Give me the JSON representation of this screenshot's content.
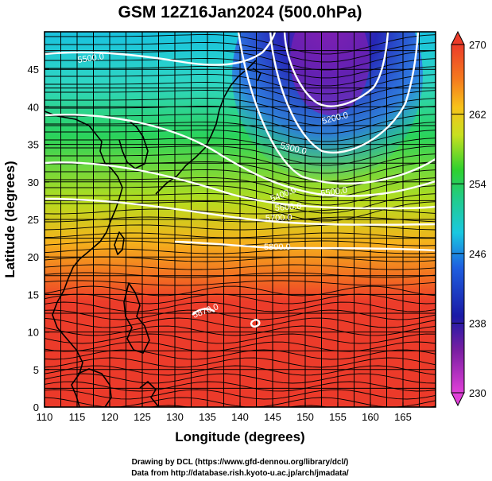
{
  "title": "GSM 12Z16Jan2024 (500.0hPa)",
  "x_axis": {
    "label": "Longitude (degrees)",
    "range": [
      110,
      170
    ],
    "ticks": [
      "110",
      "115",
      "120",
      "125",
      "130",
      "135",
      "140",
      "145",
      "150",
      "155",
      "160",
      "165"
    ]
  },
  "y_axis": {
    "label": "Latitude (degrees)",
    "range": [
      0,
      50
    ],
    "ticks": [
      "0",
      "5",
      "10",
      "15",
      "20",
      "25",
      "30",
      "35",
      "40",
      "45"
    ]
  },
  "colorbar": {
    "range": [
      230,
      270
    ],
    "ticks": [
      "230",
      "238",
      "246",
      "254",
      "262",
      "270"
    ],
    "colors": [
      "#e040d8",
      "#7b1fa2",
      "#1a1aa6",
      "#1e5fe0",
      "#19c8e0",
      "#22cc88",
      "#2fd12f",
      "#c8e020",
      "#f7c21a",
      "#f57a1e",
      "#ec3c2a"
    ]
  },
  "contours": {
    "color": "#ffffff",
    "labels": [
      "5500.0",
      "5200.0",
      "5300.0",
      "5400.0",
      "5500.0",
      "5600.0",
      "5700.0",
      "5800.0",
      "5870.0"
    ]
  },
  "map": {
    "grid": true,
    "coastline_color": "#000000",
    "streamline_color": "#000000"
  },
  "credits": {
    "line1": "Drawing by DCL (https://www.gfd-dennou.org/library/dcl/)",
    "line2": "Data from http://database.rish.kyoto-u.ac.jp/arch/jmadata/"
  }
}
